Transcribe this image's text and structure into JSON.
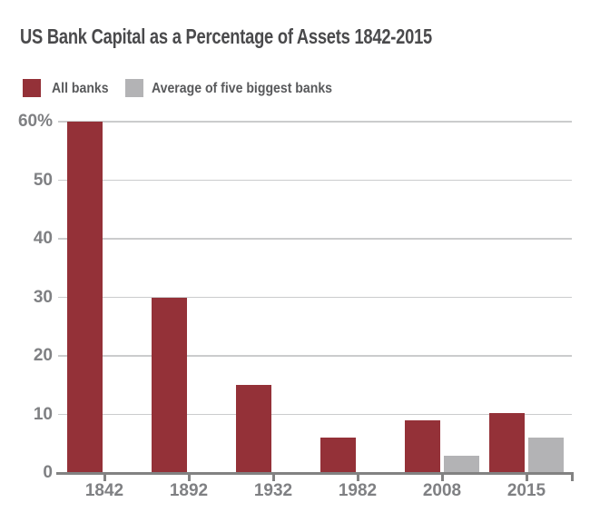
{
  "chart": {
    "title": "US Bank Capital as a Percentage of Assets 1842-2015"
  },
  "colors": {
    "all_banks_red": "#943138",
    "five_biggest_gray": "#b3b3b5",
    "title_text": "#4a4a4c",
    "legend_text": "#58595b",
    "axis_text": "#7f8083",
    "gridline": "#cbcccd",
    "axis_line": "#828282",
    "background": "#ffffff"
  },
  "chart_data": {
    "type": "bar",
    "title": "US Bank Capital as a Percentage of Assets 1842-2015",
    "categories": [
      "1842",
      "1892",
      "1932",
      "1982",
      "2008",
      "2015"
    ],
    "series": [
      {
        "name": "All banks",
        "color": "#943138",
        "values": [
          60,
          30,
          15,
          6,
          9,
          10.3
        ]
      },
      {
        "name": "Average of five biggest banks",
        "color": "#b3b3b5",
        "values": [
          null,
          null,
          null,
          null,
          3,
          6
        ]
      }
    ],
    "ylabel": "%",
    "ylim": [
      0,
      60
    ],
    "yticks": [
      0,
      10,
      20,
      30,
      40,
      50,
      60
    ],
    "ytick_labels": [
      "0",
      "10",
      "20",
      "30",
      "40",
      "50",
      "60%"
    ],
    "grid": true,
    "grid_axis": "y",
    "legend_position": "top-left",
    "bar_layout": "grouped, second series only present for 2008 and 2015"
  }
}
